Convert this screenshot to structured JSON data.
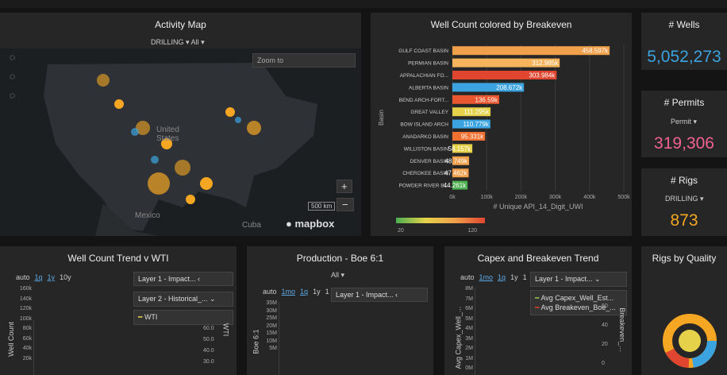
{
  "activity_map": {
    "title": "Activity Map",
    "filter_field": "DRILLING",
    "filter_value": "All",
    "search_placeholder": "Zoom to",
    "country_label": "United States",
    "label_mexico": "Mexico",
    "label_cuba": "Cuba",
    "scale": "500 km",
    "logo": "mapbox"
  },
  "well_count_chart": {
    "type": "bar",
    "orientation": "horizontal",
    "title": "Well Count colored by Breakeven",
    "categories": [
      "GULF COAST BASIN",
      "PERMIAN BASIN",
      "APPALACHIAN FO...",
      "ALBERTA BASIN",
      "BEND ARCH-FORT...",
      "GREAT VALLEY",
      "BOW ISLAND ARCH",
      "ANADARKO BASIN",
      "WILLISTON BASIN",
      "DENVER BASIN",
      "CHEROKEE BASIN",
      "POWDER RIVER B..."
    ],
    "values": [
      458597,
      312985,
      303984,
      208672,
      136590,
      111295,
      110779,
      95331,
      58157,
      48749,
      47462,
      44261
    ],
    "value_labels": [
      "458.597k",
      "312.985k",
      "303.984k",
      "208.672k",
      "136.59k",
      "111.295k",
      "110.779k",
      "95.331k",
      "58.157k",
      "48.749k",
      "47.462k",
      "44.261k"
    ],
    "colors": [
      "#f0a04a",
      "#f5b45c",
      "#e0452f",
      "#3ba3e0",
      "#e8572f",
      "#e6d24a",
      "#3ba3e0",
      "#f07030",
      "#e6d24a",
      "#f0a04a",
      "#f0a04a",
      "#4caf50"
    ],
    "xlim": [
      0,
      500000
    ],
    "xticks": [
      {
        "value": 0,
        "label": "0k"
      },
      {
        "value": 100000,
        "label": "100k"
      },
      {
        "value": 200000,
        "label": "200k"
      },
      {
        "value": 300000,
        "label": "300k"
      },
      {
        "value": 400000,
        "label": "400k"
      },
      {
        "value": 500000,
        "label": "500k"
      }
    ],
    "x_label": "# Unique API_14_Digit_UWI",
    "y_label": "Basin",
    "colorbar": {
      "min": 20,
      "max": 120
    }
  },
  "kpis": [
    {
      "title": "# Wells",
      "value": "5,052,273",
      "color": "#3ba3e0"
    },
    {
      "title": "# Permits",
      "dropdown": "Permit",
      "value": "319,306",
      "color": "#f06292"
    },
    {
      "title": "# Rigs",
      "dropdown": "DRILLING",
      "value": "873",
      "color": "#f5a623"
    }
  ],
  "trend": {
    "title": "Well Count Trend v WTI",
    "buttons": [
      "auto",
      "1q",
      "1y",
      "10y"
    ],
    "layers": [
      "Layer 1 - Impact...",
      "Layer 2 - Historical_..."
    ],
    "legend_item": "WTI",
    "y_label": "Well Count",
    "yticks": [
      "160k",
      "140k",
      "120k",
      "100k",
      "80k",
      "60k",
      "40k",
      "20k"
    ],
    "y2_label": "WTI",
    "y2ticks": [
      "60.0",
      "50.0",
      "40.0",
      "30.0"
    ]
  },
  "production": {
    "title": "Production - Boe 6:1",
    "dropdown": "All",
    "buttons": [
      "auto",
      "1mo",
      "1q",
      "1y",
      "1"
    ],
    "layer": "Layer 1 - Impact...",
    "y_label": "Boe 6:1",
    "yticks": [
      "35M",
      "30M",
      "25M",
      "20M",
      "15M",
      "10M",
      "5M"
    ]
  },
  "capex": {
    "title": "Capex and Breakeven Trend",
    "buttons": [
      "auto",
      "1mo",
      "1q",
      "1y",
      "1"
    ],
    "layer": "Layer 1 - Impact...",
    "legend": [
      "Avg Capex_Well_Est...",
      "Avg Breakeven_Boe_..."
    ],
    "y_label": "Avg Capex_Well_...",
    "yticks": [
      "8M",
      "7M",
      "6M",
      "5M",
      "4M",
      "3M",
      "2M",
      "1M",
      "0M"
    ],
    "y2_label": "Breakeven_...",
    "y2ticks": [
      "60",
      "40",
      "20",
      "0"
    ]
  },
  "rigs_quality": {
    "title": "Rigs by Quality"
  }
}
